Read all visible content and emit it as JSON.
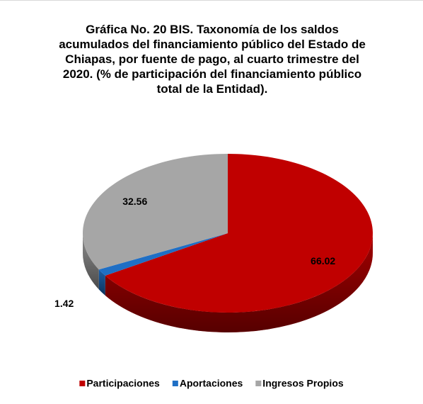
{
  "chart_data": {
    "type": "pie3d",
    "title": "Gráfica No. 20 BIS. Taxonomía de los saldos acumulados del financiamiento público del Estado de Chiapas, por fuente de pago, al cuarto trimestre del 2020. (% de participación del financiamiento público total de la Entidad).",
    "categories": [
      "Participaciones",
      "Aportaciones",
      "Ingresos Propios"
    ],
    "values": [
      66.02,
      1.42,
      32.56
    ],
    "colors": [
      "#c00000",
      "#1f6fc5",
      "#a6a6a6"
    ],
    "legend": "bottom"
  }
}
